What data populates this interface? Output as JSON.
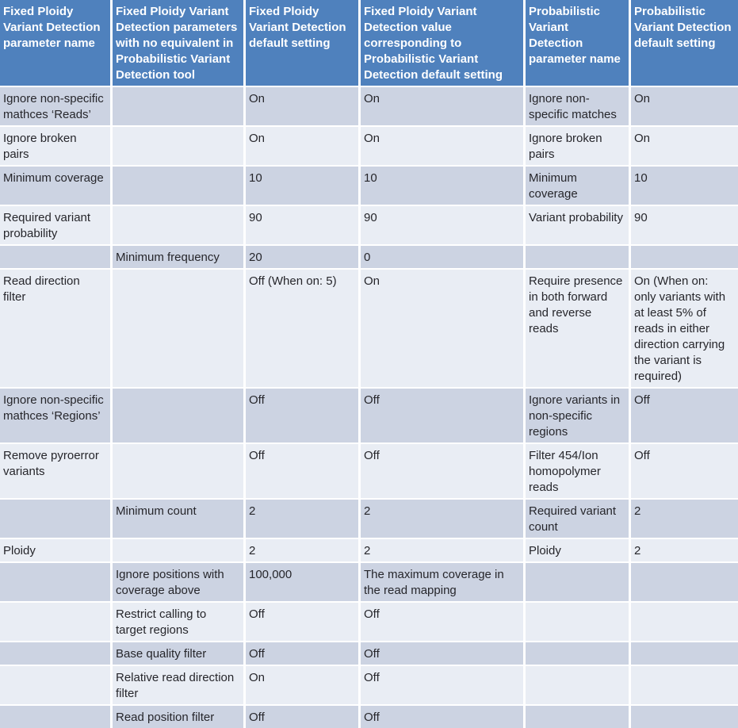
{
  "table": {
    "columns": [
      {
        "label": "Fixed Ploidy Variant Detection parameter name"
      },
      {
        "label": "Fixed Ploidy Variant Detection parameters with no equivalent in Probabilistic Variant Detection tool"
      },
      {
        "label": "Fixed Ploidy Variant Detection default setting"
      },
      {
        "label": "Fixed Ploidy Variant Detection value corresponding to Probabilistic Variant Detection default setting"
      },
      {
        "label": "Probabilistic Variant Detection parameter name"
      },
      {
        "label": "Probabilistic Variant Detection default setting"
      }
    ],
    "rows": [
      {
        "cells": [
          "Ignore non-specific mathces ‘Reads’",
          "",
          "On",
          "On",
          "Ignore non-specific matches",
          "On"
        ]
      },
      {
        "cells": [
          "Ignore broken pairs",
          "",
          "On",
          "On",
          "Ignore broken pairs",
          "On"
        ]
      },
      {
        "cells": [
          "Minimum coverage",
          "",
          "10",
          "10",
          "Minimum coverage",
          "10"
        ]
      },
      {
        "cells": [
          "Required variant probability",
          "",
          "90",
          "90",
          "Variant probability",
          "90"
        ]
      },
      {
        "cells": [
          "",
          "Minimum frequency",
          "20",
          "0",
          "",
          ""
        ]
      },
      {
        "cells": [
          "Read direction filter",
          "",
          "Off (When on: 5)",
          "On",
          "Require presence in both forward and reverse reads",
          "On (When on: only variants with at least 5% of reads in either direction carrying the variant is required)"
        ]
      },
      {
        "cells": [
          "Ignore non-specific mathces ‘Regions’",
          "",
          "Off",
          "Off",
          "Ignore variants in non-specific regions",
          "Off"
        ]
      },
      {
        "cells": [
          "Remove pyroerror variants",
          "",
          "Off",
          "Off",
          "Filter 454/Ion homopolymer reads",
          "Off"
        ]
      },
      {
        "cells": [
          "",
          "Minimum count",
          "2",
          "2",
          "Required variant count",
          "2"
        ]
      },
      {
        "cells": [
          "Ploidy",
          "",
          "2",
          "2",
          "Ploidy",
          "2"
        ]
      },
      {
        "cells": [
          "",
          "Ignore positions with coverage above",
          "100,000",
          "The maximum coverage in the read mapping",
          "",
          ""
        ]
      },
      {
        "cells": [
          "",
          "Restrict calling to target regions",
          "Off",
          "Off",
          "",
          ""
        ]
      },
      {
        "cells": [
          "",
          "Base quality filter",
          "Off",
          "Off",
          "",
          ""
        ]
      },
      {
        "cells": [
          "",
          "Relative read direction filter",
          "On",
          "Off",
          "",
          ""
        ]
      },
      {
        "cells": [
          "",
          "Read position filter",
          "Off",
          "Off",
          "",
          ""
        ]
      }
    ]
  },
  "colors": {
    "header_bg": "#4f81bd",
    "row_dark": "#ccd3e2",
    "row_light": "#e9edf4",
    "header_text": "#ffffff",
    "body_text": "#26262b",
    "grid": "#ffffff"
  }
}
